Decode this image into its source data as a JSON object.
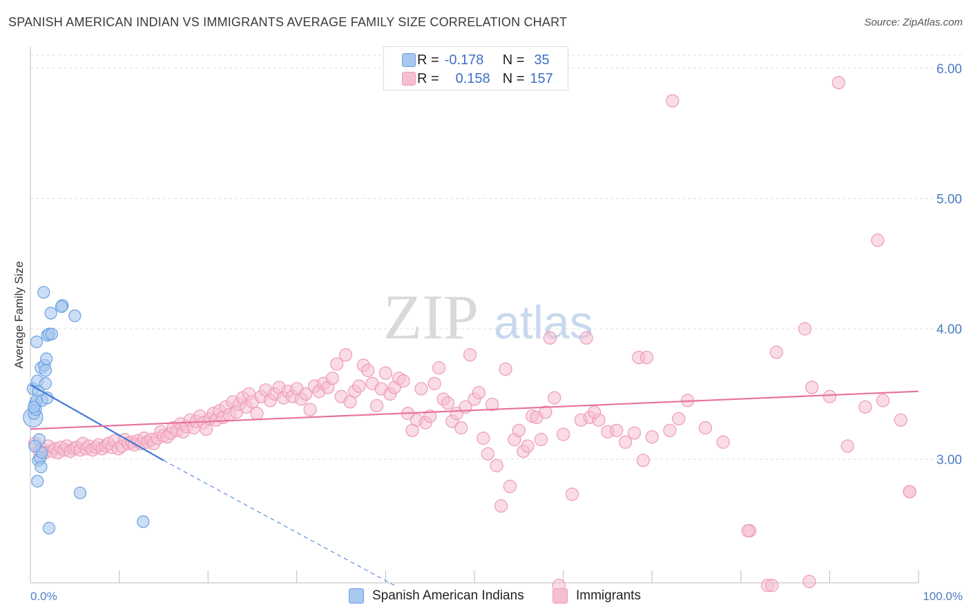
{
  "title": "SPANISH AMERICAN INDIAN VS IMMIGRANTS AVERAGE FAMILY SIZE CORRELATION CHART",
  "source": "Source: ZipAtlas.com",
  "watermark": {
    "zip": "ZIP",
    "atlas": "atlas"
  },
  "colors": {
    "blue_fill": "#a9c8f0",
    "blue_stroke": "#6a9fe0",
    "blue_line": "#3b78d8",
    "pink_fill": "#f6bfd0",
    "pink_stroke": "#ee9ab5",
    "pink_line": "#e8739a",
    "tick": "#4a7cc4",
    "grid": "#dddddd"
  },
  "legend_top": {
    "r_label": "R =",
    "n_label": "N =",
    "rows": [
      {
        "series": "blue",
        "r": "-0.178",
        "n": "35"
      },
      {
        "series": "pink",
        "r": "0.158",
        "n": "157"
      }
    ]
  },
  "legend_bottom": {
    "items": [
      {
        "series": "blue",
        "label": "Spanish American Indians"
      },
      {
        "series": "pink",
        "label": "Immigrants"
      }
    ]
  },
  "chart_data": {
    "type": "scatter",
    "title": "SPANISH AMERICAN INDIAN VS IMMIGRANTS AVERAGE FAMILY SIZE CORRELATION CHART",
    "xlabel": "",
    "ylabel": "Average Family Size",
    "xlim": [
      0,
      100
    ],
    "ylim": [
      2.05,
      6.1
    ],
    "x_tick_labels": {
      "left": "0.0%",
      "right": "100.0%"
    },
    "y_ticks": [
      {
        "value": 3.0,
        "label": "3.00"
      },
      {
        "value": 4.0,
        "label": "4.00"
      },
      {
        "value": 5.0,
        "label": "5.00"
      },
      {
        "value": 6.0,
        "label": "6.00"
      }
    ],
    "grid": true,
    "series": [
      {
        "name": "Spanish American Indians",
        "color": "blue",
        "trend": {
          "x1": 0,
          "y1": 3.57,
          "x2": 15,
          "y2": 2.99,
          "dash_to_x": 41,
          "dash_to_y": 2.03
        },
        "points": [
          [
            0.3,
            3.32
          ],
          [
            0.4,
            3.35
          ],
          [
            0.5,
            3.42
          ],
          [
            0.6,
            3.38
          ],
          [
            0.7,
            3.45
          ],
          [
            0.3,
            3.54
          ],
          [
            0.8,
            3.6
          ],
          [
            0.9,
            3.52
          ],
          [
            0.7,
            3.9
          ],
          [
            1.0,
            3.15
          ],
          [
            1.2,
            3.7
          ],
          [
            1.3,
            3.45
          ],
          [
            1.5,
            4.28
          ],
          [
            1.6,
            3.72
          ],
          [
            1.7,
            3.68
          ],
          [
            1.8,
            3.77
          ],
          [
            1.7,
            3.58
          ],
          [
            1.9,
            3.47
          ],
          [
            1.9,
            3.95
          ],
          [
            2.1,
            3.96
          ],
          [
            2.3,
            4.12
          ],
          [
            2.4,
            3.96
          ],
          [
            3.6,
            4.18
          ],
          [
            3.5,
            4.17
          ],
          [
            5.0,
            4.1
          ],
          [
            0.9,
            2.99
          ],
          [
            1.1,
            3.01
          ],
          [
            1.2,
            2.94
          ],
          [
            1.3,
            3.05
          ],
          [
            0.8,
            2.83
          ],
          [
            0.5,
            3.1
          ],
          [
            2.1,
            2.47
          ],
          [
            5.6,
            2.74
          ],
          [
            12.7,
            2.52
          ],
          [
            0.4,
            3.4
          ]
        ]
      },
      {
        "name": "Immigrants",
        "color": "pink",
        "trend": {
          "x1": 0,
          "y1": 3.23,
          "x2": 100,
          "y2": 3.52
        },
        "points": [
          [
            0.5,
            3.12
          ],
          [
            1.0,
            3.06
          ],
          [
            1.3,
            3.08
          ],
          [
            1.6,
            3.05
          ],
          [
            2.0,
            3.1
          ],
          [
            2.4,
            3.06
          ],
          [
            2.8,
            3.08
          ],
          [
            3.1,
            3.05
          ],
          [
            3.4,
            3.09
          ],
          [
            3.8,
            3.07
          ],
          [
            4.1,
            3.1
          ],
          [
            4.5,
            3.06
          ],
          [
            4.9,
            3.08
          ],
          [
            5.2,
            3.09
          ],
          [
            5.6,
            3.07
          ],
          [
            5.9,
            3.12
          ],
          [
            6.3,
            3.08
          ],
          [
            6.6,
            3.1
          ],
          [
            7.0,
            3.07
          ],
          [
            7.4,
            3.09
          ],
          [
            7.7,
            3.11
          ],
          [
            8.1,
            3.08
          ],
          [
            8.5,
            3.1
          ],
          [
            8.8,
            3.12
          ],
          [
            9.2,
            3.09
          ],
          [
            9.5,
            3.14
          ],
          [
            9.9,
            3.08
          ],
          [
            10.3,
            3.1
          ],
          [
            10.6,
            3.15
          ],
          [
            11.0,
            3.12
          ],
          [
            11.4,
            3.13
          ],
          [
            11.7,
            3.11
          ],
          [
            12.1,
            3.14
          ],
          [
            12.5,
            3.12
          ],
          [
            12.8,
            3.16
          ],
          [
            13.2,
            3.13
          ],
          [
            13.6,
            3.15
          ],
          [
            13.9,
            3.12
          ],
          [
            14.3,
            3.16
          ],
          [
            14.7,
            3.21
          ],
          [
            15.0,
            3.18
          ],
          [
            15.4,
            3.17
          ],
          [
            15.8,
            3.2
          ],
          [
            16.1,
            3.24
          ],
          [
            16.5,
            3.22
          ],
          [
            16.9,
            3.27
          ],
          [
            17.2,
            3.21
          ],
          [
            17.6,
            3.25
          ],
          [
            18.0,
            3.3
          ],
          [
            18.4,
            3.24
          ],
          [
            18.7,
            3.29
          ],
          [
            19.1,
            3.33
          ],
          [
            19.5,
            3.28
          ],
          [
            19.8,
            3.23
          ],
          [
            20.2,
            3.31
          ],
          [
            20.6,
            3.35
          ],
          [
            20.9,
            3.3
          ],
          [
            21.3,
            3.37
          ],
          [
            21.7,
            3.32
          ],
          [
            22.0,
            3.4
          ],
          [
            22.4,
            3.34
          ],
          [
            22.8,
            3.44
          ],
          [
            23.2,
            3.36
          ],
          [
            23.5,
            3.42
          ],
          [
            23.9,
            3.47
          ],
          [
            24.3,
            3.4
          ],
          [
            24.6,
            3.5
          ],
          [
            25.0,
            3.44
          ],
          [
            25.5,
            3.35
          ],
          [
            26.0,
            3.48
          ],
          [
            26.5,
            3.53
          ],
          [
            27.0,
            3.45
          ],
          [
            27.5,
            3.5
          ],
          [
            28.0,
            3.55
          ],
          [
            28.5,
            3.47
          ],
          [
            29.0,
            3.52
          ],
          [
            29.5,
            3.48
          ],
          [
            30.0,
            3.54
          ],
          [
            30.5,
            3.46
          ],
          [
            31.0,
            3.5
          ],
          [
            31.5,
            3.38
          ],
          [
            32.0,
            3.56
          ],
          [
            32.5,
            3.52
          ],
          [
            33.0,
            3.58
          ],
          [
            33.5,
            3.55
          ],
          [
            34.0,
            3.62
          ],
          [
            34.5,
            3.73
          ],
          [
            35.0,
            3.48
          ],
          [
            35.5,
            3.8
          ],
          [
            36.0,
            3.44
          ],
          [
            36.5,
            3.52
          ],
          [
            37.0,
            3.56
          ],
          [
            37.5,
            3.72
          ],
          [
            38.0,
            3.68
          ],
          [
            38.5,
            3.58
          ],
          [
            39.0,
            3.41
          ],
          [
            39.5,
            3.54
          ],
          [
            40.0,
            3.66
          ],
          [
            40.5,
            3.5
          ],
          [
            41.0,
            3.55
          ],
          [
            41.5,
            3.62
          ],
          [
            42.0,
            3.6
          ],
          [
            42.5,
            3.35
          ],
          [
            43.0,
            3.22
          ],
          [
            43.5,
            3.3
          ],
          [
            44.0,
            3.54
          ],
          [
            44.5,
            3.28
          ],
          [
            45.0,
            3.33
          ],
          [
            45.5,
            3.58
          ],
          [
            46.0,
            3.7
          ],
          [
            46.5,
            3.46
          ],
          [
            47.0,
            3.43
          ],
          [
            47.5,
            3.29
          ],
          [
            48.0,
            3.35
          ],
          [
            48.5,
            3.24
          ],
          [
            49.0,
            3.4
          ],
          [
            49.5,
            3.8
          ],
          [
            50.0,
            3.46
          ],
          [
            50.5,
            3.51
          ],
          [
            51.0,
            3.16
          ],
          [
            51.5,
            3.04
          ],
          [
            52.0,
            3.42
          ],
          [
            52.5,
            2.95
          ],
          [
            53.0,
            2.64
          ],
          [
            53.5,
            3.69
          ],
          [
            54.0,
            2.79
          ],
          [
            54.5,
            3.15
          ],
          [
            55.0,
            3.22
          ],
          [
            55.5,
            3.06
          ],
          [
            56.0,
            3.1
          ],
          [
            56.5,
            3.33
          ],
          [
            57.0,
            3.32
          ],
          [
            57.5,
            3.15
          ],
          [
            58.0,
            3.36
          ],
          [
            58.5,
            3.93
          ],
          [
            59.0,
            3.47
          ],
          [
            59.5,
            2.03
          ],
          [
            60.0,
            3.19
          ],
          [
            61.0,
            2.73
          ],
          [
            62.0,
            3.3
          ],
          [
            63.0,
            3.32
          ],
          [
            64.0,
            3.3
          ],
          [
            65.0,
            3.21
          ],
          [
            66.0,
            3.22
          ],
          [
            67.0,
            3.13
          ],
          [
            68.0,
            3.2
          ],
          [
            69.0,
            2.99
          ],
          [
            70.0,
            3.17
          ],
          [
            72.0,
            3.22
          ],
          [
            74.0,
            3.45
          ],
          [
            76.0,
            3.24
          ],
          [
            78.0,
            3.13
          ],
          [
            81.0,
            2.45
          ],
          [
            83.0,
            2.03
          ],
          [
            84.0,
            3.82
          ],
          [
            88.0,
            3.55
          ],
          [
            90.0,
            3.48
          ],
          [
            92.0,
            3.1
          ],
          [
            94.0,
            3.4
          ],
          [
            96.0,
            3.45
          ],
          [
            98.0,
            3.3
          ],
          [
            99.0,
            2.75
          ],
          [
            68.5,
            3.78
          ],
          [
            63.5,
            3.36
          ],
          [
            73.0,
            3.31
          ]
        ],
        "outliers": [
          [
            91.0,
            5.89
          ],
          [
            72.3,
            5.75
          ],
          [
            95.4,
            4.68
          ],
          [
            87.2,
            4.0
          ],
          [
            62.6,
            3.93
          ],
          [
            69.4,
            3.78
          ],
          [
            87.7,
            2.06
          ],
          [
            80.8,
            2.45
          ],
          [
            99.0,
            2.75
          ],
          [
            83.5,
            2.03
          ]
        ]
      }
    ]
  }
}
